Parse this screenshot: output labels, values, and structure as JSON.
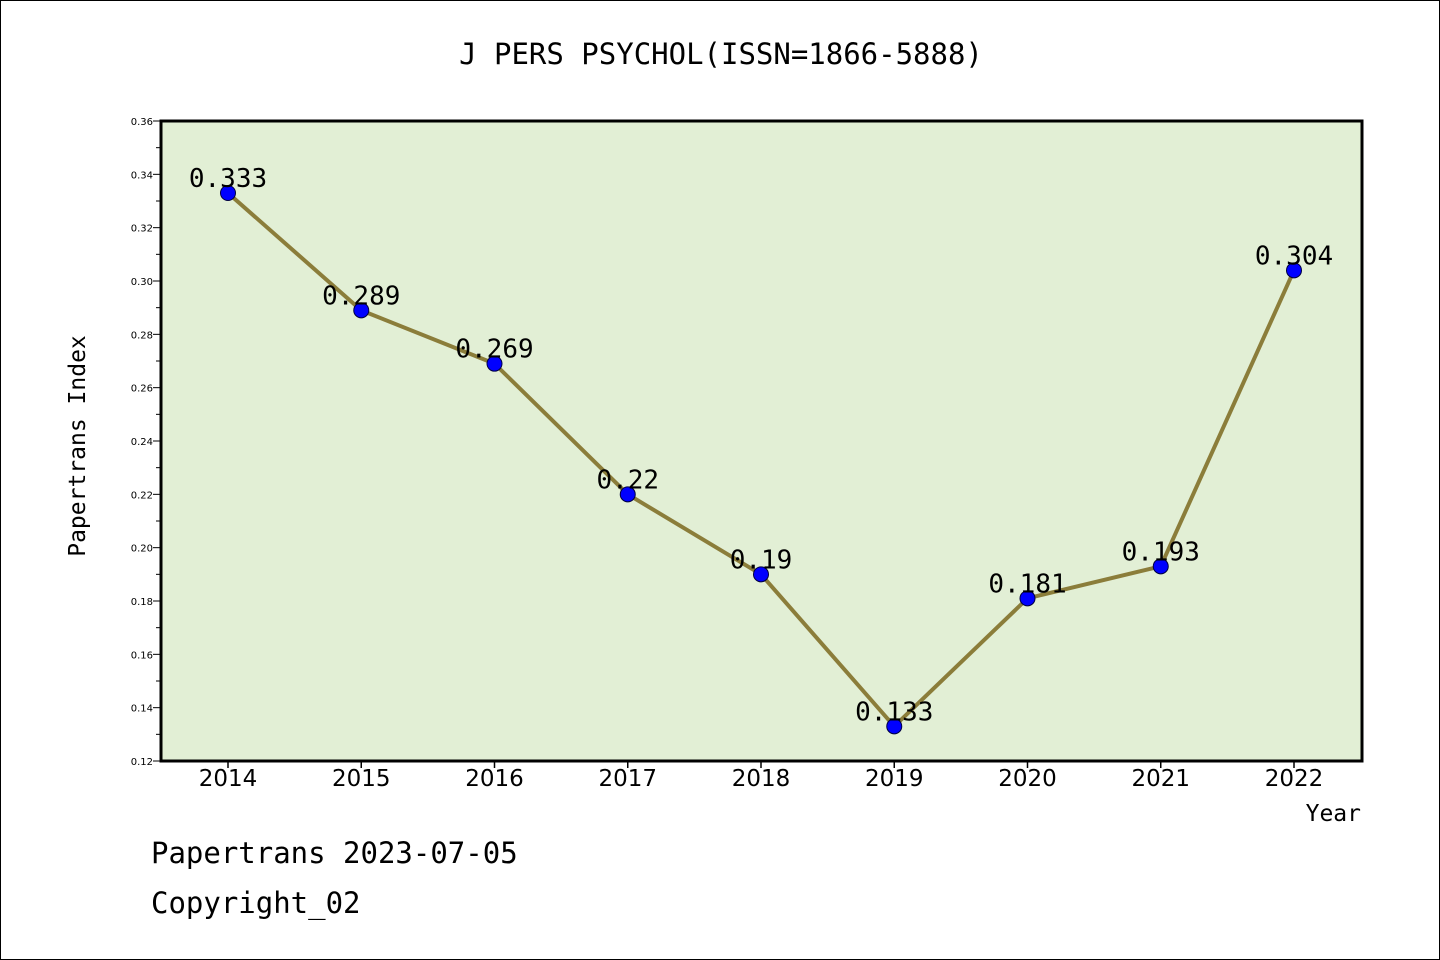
{
  "title": "J PERS PSYCHOL(ISSN=1866-5888)",
  "footer": {
    "line1": "Papertrans 2023-07-05",
    "line2": "Copyright_02"
  },
  "colors": {
    "plot_background": "#e2efd5",
    "line": "#8b7d3a",
    "marker": "#0000ff",
    "frame": "#000000"
  },
  "chart_data": {
    "type": "line",
    "title": "J PERS PSYCHOL(ISSN=1866-5888)",
    "xlabel": "Year",
    "ylabel": "Papertrans Index",
    "categories": [
      "2014",
      "2015",
      "2016",
      "2017",
      "2018",
      "2019",
      "2020",
      "2021",
      "2022"
    ],
    "series": [
      {
        "values": [
          0.333,
          0.289,
          0.269,
          0.22,
          0.19,
          0.133,
          0.181,
          0.193,
          0.304
        ],
        "labels": [
          "0.333",
          "0.289",
          "0.269",
          "0.22",
          "0.19",
          "0.133",
          "0.181",
          "0.193",
          "0.304"
        ]
      }
    ],
    "yticks": [
      "0.12",
      "0.14",
      "0.16",
      "0.18",
      "0.20",
      "0.22",
      "0.24",
      "0.26",
      "0.28",
      "0.30",
      "0.32",
      "0.34",
      "0.36"
    ],
    "ylim": [
      0.12,
      0.36
    ],
    "grid": false,
    "legend": "none"
  }
}
